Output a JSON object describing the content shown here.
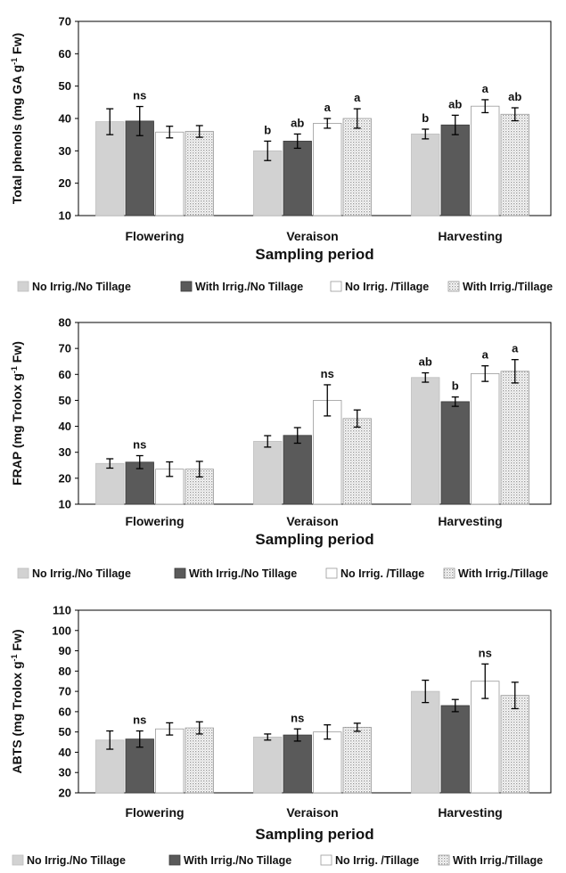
{
  "chart_data": [
    {
      "type": "bar",
      "ylabel": "Total phenols (mg GA g-1 Fw)",
      "ylabel_main": "Total phenols (mg GA g",
      "ylabel_sup": "-1",
      "ylabel_end": " Fw)",
      "xlabel": "Sampling period",
      "ylim": [
        10,
        70
      ],
      "yticks": [
        10,
        20,
        30,
        40,
        50,
        60,
        70
      ],
      "categories": [
        "Flowering",
        "Veraison",
        "Harvesting"
      ],
      "series": [
        {
          "name": "No Irrig./No Tillage",
          "values": [
            39,
            30,
            35.2
          ],
          "errors": [
            4,
            3,
            1.5
          ]
        },
        {
          "name": "With Irrig./No Tillage",
          "values": [
            39.2,
            33,
            38
          ],
          "errors": [
            4.5,
            2.2,
            3
          ]
        },
        {
          "name": "No Irrig. /Tillage",
          "values": [
            35.8,
            38.5,
            43.8
          ],
          "errors": [
            1.8,
            1.5,
            2
          ]
        },
        {
          "name": "With Irrig./Tillage",
          "values": [
            36,
            40,
            41.3
          ],
          "errors": [
            1.8,
            3,
            2
          ]
        }
      ],
      "labels": [
        [
          "",
          "ns",
          "",
          ""
        ],
        [
          "b",
          "ab",
          "a",
          "a"
        ],
        [
          "b",
          "ab",
          "a",
          "ab"
        ]
      ]
    },
    {
      "type": "bar",
      "ylabel": "FRAP (mg Trolox g-1 Fw)",
      "ylabel_main": "FRAP (mg Trolox g",
      "ylabel_sup": "-1",
      "ylabel_end": " Fw)",
      "xlabel": "Sampling period",
      "ylim": [
        10,
        80
      ],
      "yticks": [
        10,
        20,
        30,
        40,
        50,
        60,
        70,
        80
      ],
      "categories": [
        "Flowering",
        "Veraison",
        "Harvesting"
      ],
      "series": [
        {
          "name": "No Irrig./No Tillage",
          "values": [
            25.7,
            34.2,
            58.8
          ],
          "errors": [
            1.8,
            2.2,
            1.8
          ]
        },
        {
          "name": "With Irrig./No Tillage",
          "values": [
            26.2,
            36.5,
            49.5
          ],
          "errors": [
            2.5,
            3,
            1.8
          ]
        },
        {
          "name": "No Irrig. /Tillage",
          "values": [
            23.5,
            50,
            60.3
          ],
          "errors": [
            2.8,
            6,
            3
          ]
        },
        {
          "name": "With Irrig./Tillage",
          "values": [
            23.5,
            43,
            61.2
          ],
          "errors": [
            3,
            3.3,
            4.5
          ]
        }
      ],
      "labels": [
        [
          "",
          "ns",
          "",
          ""
        ],
        [
          "",
          "",
          "ns",
          ""
        ],
        [
          "ab",
          "b",
          "a",
          "a"
        ]
      ]
    },
    {
      "type": "bar",
      "ylabel": "ABTS (mg Trolox g-1 Fw)",
      "ylabel_main": "ABTS (mg Trolox g",
      "ylabel_sup": "-1",
      "ylabel_end": " Fw)",
      "xlabel": "Sampling period",
      "ylim": [
        20,
        110
      ],
      "yticks": [
        20,
        30,
        40,
        50,
        60,
        70,
        80,
        90,
        100,
        110
      ],
      "categories": [
        "Flowering",
        "Veraison",
        "Harvesting"
      ],
      "series": [
        {
          "name": "No Irrig./No Tillage",
          "values": [
            46,
            47.5,
            70
          ],
          "errors": [
            4.5,
            1.5,
            5.5
          ]
        },
        {
          "name": "With Irrig./No Tillage",
          "values": [
            46.5,
            48.5,
            63
          ],
          "errors": [
            4,
            3,
            3
          ]
        },
        {
          "name": "No Irrig. /Tillage",
          "values": [
            51.5,
            50,
            75
          ],
          "errors": [
            3,
            3.5,
            8.5
          ]
        },
        {
          "name": "With Irrig./Tillage",
          "values": [
            52,
            52.3,
            68
          ],
          "errors": [
            3,
            2,
            6.5
          ]
        }
      ],
      "labels": [
        [
          "",
          "ns",
          "",
          ""
        ],
        [
          "",
          "ns",
          "",
          ""
        ],
        [
          "",
          "",
          "ns",
          ""
        ]
      ]
    }
  ],
  "legend": [
    {
      "label": "No Irrig./No Tillage",
      "fill": "#d2d2d2"
    },
    {
      "label": "With Irrig./No Tillage",
      "fill": "#5a5a5a"
    },
    {
      "label": "No Irrig. /Tillage",
      "fill": "#ffffff"
    },
    {
      "label": "With Irrig./Tillage",
      "fill": "dots"
    }
  ],
  "colors": {
    "series": [
      "#d2d2d2",
      "#5a5a5a",
      "#ffffff",
      "dots"
    ],
    "axis": "#000000",
    "gridline": "#888888"
  }
}
